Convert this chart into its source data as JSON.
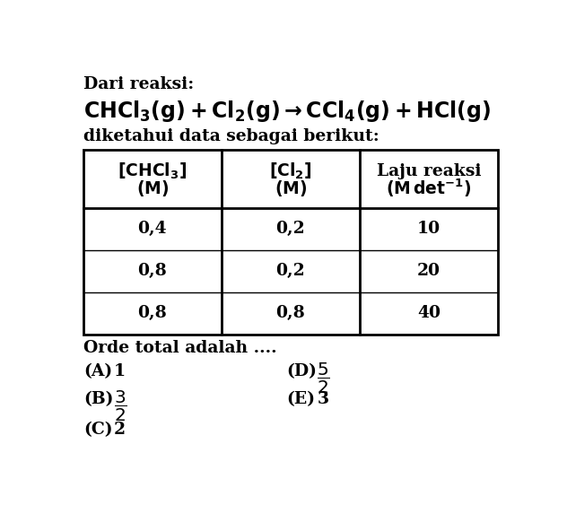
{
  "bg_color": "#ffffff",
  "text_color": "#000000",
  "line1": "Dari reaksi:",
  "line3": "diketahui data sebagai berikut:",
  "table_data": [
    [
      "0,4",
      "0,2",
      "10"
    ],
    [
      "0,8",
      "0,2",
      "20"
    ],
    [
      "0,8",
      "0,8",
      "40"
    ]
  ],
  "question": "Orde total adalah ....",
  "font_size_small": 13.5,
  "font_size_eq": 17,
  "font_size_table": 13.5,
  "font_family": "DejaVu Serif"
}
